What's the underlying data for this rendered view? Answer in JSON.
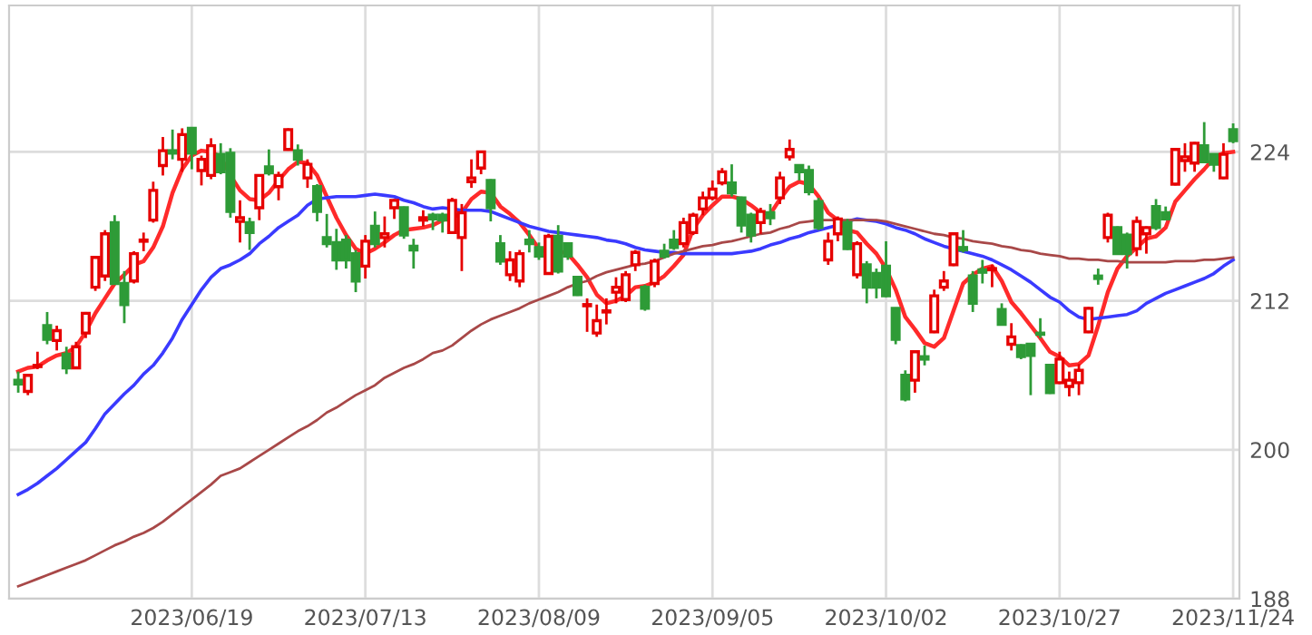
{
  "chart_data": {
    "type": "candlestick",
    "categories": [
      null,
      null,
      null,
      null,
      null,
      null,
      null,
      null,
      null,
      null,
      null,
      null,
      null,
      null,
      null,
      null,
      null,
      null,
      "2023/06/19",
      null,
      null,
      null,
      null,
      null,
      null,
      null,
      null,
      null,
      null,
      null,
      null,
      null,
      null,
      null,
      null,
      null,
      "2023/07/13",
      null,
      null,
      null,
      null,
      null,
      null,
      null,
      null,
      null,
      null,
      null,
      null,
      null,
      null,
      null,
      null,
      null,
      "2023/08/09",
      null,
      null,
      null,
      null,
      null,
      null,
      null,
      null,
      null,
      null,
      null,
      null,
      null,
      null,
      null,
      null,
      null,
      "2023/09/05",
      null,
      null,
      null,
      null,
      null,
      null,
      null,
      null,
      null,
      null,
      null,
      null,
      null,
      null,
      null,
      null,
      null,
      "2023/10/02",
      null,
      null,
      null,
      null,
      null,
      null,
      null,
      null,
      null,
      null,
      null,
      null,
      null,
      null,
      null,
      null,
      null,
      "2023/10/27",
      null,
      null,
      null,
      null,
      null,
      null,
      null,
      null,
      null,
      null,
      null,
      null,
      null,
      null,
      null,
      null,
      null,
      "2023/11/24"
    ],
    "ohlc": [
      [
        205.6,
        206.3,
        204.6,
        205.3
      ],
      [
        204.7,
        206.1,
        204.4,
        206.0
      ],
      [
        206.7,
        207.9,
        206.5,
        206.8
      ],
      [
        210.0,
        211.1,
        208.5,
        208.9
      ],
      [
        208.8,
        210.0,
        208.0,
        209.6
      ],
      [
        207.7,
        208.3,
        206.1,
        206.6
      ],
      [
        206.6,
        208.7,
        206.5,
        208.3
      ],
      [
        209.4,
        211.1,
        209.0,
        211.0
      ],
      [
        213.1,
        215.6,
        212.8,
        215.5
      ],
      [
        214.0,
        217.7,
        213.6,
        217.4
      ],
      [
        218.3,
        218.9,
        213.3,
        213.4
      ],
      [
        213.4,
        214.4,
        210.2,
        211.7
      ],
      [
        213.6,
        216.0,
        213.4,
        215.8
      ],
      [
        216.8,
        217.5,
        216.0,
        216.9
      ],
      [
        218.5,
        221.6,
        218.3,
        220.9
      ],
      [
        222.9,
        225.2,
        222.1,
        224.1
      ],
      [
        224.1,
        225.8,
        223.4,
        223.9
      ],
      [
        223.4,
        225.9,
        222.4,
        225.4
      ],
      [
        225.9,
        225.9,
        222.6,
        223.9
      ],
      [
        222.5,
        223.7,
        221.3,
        223.4
      ],
      [
        222.1,
        225.1,
        221.8,
        224.5
      ],
      [
        223.8,
        224.7,
        222.2,
        222.4
      ],
      [
        223.9,
        224.3,
        218.7,
        219.2
      ],
      [
        218.4,
        220.1,
        216.7,
        218.7
      ],
      [
        218.3,
        218.7,
        216.1,
        217.5
      ],
      [
        219.5,
        222.2,
        218.5,
        222.1
      ],
      [
        222.8,
        224.2,
        222.1,
        222.3
      ],
      [
        221.2,
        222.4,
        220.1,
        222.1
      ],
      [
        224.2,
        225.9,
        224.1,
        225.8
      ],
      [
        224.1,
        224.6,
        222.9,
        223.4
      ],
      [
        221.9,
        223.4,
        221.1,
        223.0
      ],
      [
        221.2,
        221.4,
        218.4,
        219.2
      ],
      [
        217.1,
        219.0,
        216.3,
        216.6
      ],
      [
        216.7,
        217.8,
        214.5,
        215.3
      ],
      [
        216.9,
        217.3,
        214.6,
        215.3
      ],
      [
        215.8,
        216.1,
        212.7,
        213.6
      ],
      [
        214.8,
        217.3,
        213.8,
        216.8
      ],
      [
        218.0,
        219.2,
        216.3,
        216.6
      ],
      [
        217.1,
        218.8,
        216.3,
        217.4
      ],
      [
        219.5,
        220.2,
        218.6,
        220.1
      ],
      [
        219.5,
        219.6,
        217.0,
        217.3
      ],
      [
        216.4,
        217.0,
        214.6,
        216.1
      ],
      [
        218.5,
        219.3,
        218.0,
        218.7
      ],
      [
        218.9,
        219.1,
        217.7,
        218.6
      ],
      [
        218.9,
        219.1,
        217.5,
        218.5
      ],
      [
        217.5,
        220.3,
        217.4,
        220.1
      ],
      [
        217.1,
        219.8,
        214.4,
        219.1
      ],
      [
        221.6,
        223.4,
        221.1,
        221.9
      ],
      [
        222.7,
        224.1,
        222.2,
        224.0
      ],
      [
        221.7,
        221.8,
        218.4,
        219.5
      ],
      [
        216.6,
        217.3,
        214.9,
        215.2
      ],
      [
        214.1,
        216.0,
        213.6,
        215.3
      ],
      [
        213.6,
        216.1,
        213.1,
        215.8
      ],
      [
        216.9,
        217.7,
        215.9,
        216.6
      ],
      [
        216.3,
        216.7,
        215.3,
        215.6
      ],
      [
        214.2,
        217.4,
        214.1,
        217.2
      ],
      [
        217.2,
        218.1,
        214.2,
        214.4
      ],
      [
        216.6,
        216.7,
        215.3,
        215.6
      ],
      [
        213.9,
        214.0,
        212.4,
        212.5
      ],
      [
        211.6,
        212.2,
        209.5,
        211.7
      ],
      [
        209.4,
        211.7,
        209.1,
        210.4
      ],
      [
        211.1,
        212.2,
        210.1,
        211.2
      ],
      [
        212.7,
        213.9,
        211.8,
        213.1
      ],
      [
        212.1,
        214.4,
        211.9,
        214.1
      ],
      [
        214.9,
        216.1,
        214.4,
        215.9
      ],
      [
        213.1,
        213.3,
        211.2,
        211.4
      ],
      [
        213.4,
        215.4,
        213.1,
        215.2
      ],
      [
        216.0,
        216.6,
        215.4,
        215.6
      ],
      [
        216.9,
        217.7,
        216.1,
        216.3
      ],
      [
        216.6,
        218.7,
        216.3,
        218.3
      ],
      [
        217.5,
        219.1,
        217.3,
        218.9
      ],
      [
        219.4,
        220.8,
        218.9,
        220.3
      ],
      [
        220.3,
        221.7,
        220.1,
        221.0
      ],
      [
        221.5,
        222.7,
        221.3,
        222.4
      ],
      [
        221.5,
        223.0,
        220.4,
        220.7
      ],
      [
        220.3,
        220.4,
        217.5,
        218.1
      ],
      [
        218.9,
        219.1,
        216.7,
        217.3
      ],
      [
        218.3,
        219.5,
        217.4,
        219.2
      ],
      [
        219.1,
        219.8,
        218.1,
        218.7
      ],
      [
        220.3,
        222.4,
        219.8,
        221.9
      ],
      [
        223.6,
        225.0,
        223.3,
        224.2
      ],
      [
        222.9,
        223.0,
        221.7,
        222.4
      ],
      [
        222.5,
        222.9,
        220.5,
        220.8
      ],
      [
        220.0,
        220.3,
        217.7,
        217.9
      ],
      [
        215.3,
        217.5,
        214.9,
        216.8
      ],
      [
        217.4,
        218.8,
        216.8,
        218.6
      ],
      [
        218.3,
        218.6,
        216.1,
        216.2
      ],
      [
        214.1,
        216.8,
        213.8,
        216.6
      ],
      [
        214.9,
        215.2,
        211.8,
        213.1
      ],
      [
        214.2,
        214.6,
        212.2,
        213.1
      ],
      [
        214.8,
        216.8,
        212.3,
        212.4
      ],
      [
        211.4,
        211.4,
        208.5,
        208.9
      ],
      [
        206.0,
        206.4,
        203.9,
        204.1
      ],
      [
        205.6,
        208.0,
        204.6,
        207.9
      ],
      [
        207.5,
        208.4,
        206.8,
        207.3
      ],
      [
        209.5,
        212.9,
        209.4,
        212.4
      ],
      [
        213.1,
        214.4,
        212.8,
        213.6
      ],
      [
        214.9,
        217.5,
        214.8,
        217.4
      ],
      [
        216.3,
        217.7,
        215.9,
        216.1
      ],
      [
        214.0,
        214.4,
        211.1,
        211.8
      ],
      [
        214.5,
        215.3,
        213.4,
        214.3
      ],
      [
        214.5,
        214.9,
        213.1,
        214.6
      ],
      [
        211.3,
        211.8,
        210.1,
        210.1
      ],
      [
        208.5,
        210.2,
        208.0,
        209.1
      ],
      [
        208.4,
        208.5,
        207.3,
        207.5
      ],
      [
        208.5,
        208.5,
        204.4,
        207.6
      ],
      [
        209.4,
        210.6,
        209.0,
        209.3
      ],
      [
        206.8,
        206.9,
        204.5,
        204.6
      ],
      [
        205.4,
        207.9,
        205.3,
        207.3
      ],
      [
        205.1,
        206.3,
        204.3,
        205.6
      ],
      [
        205.4,
        206.9,
        204.4,
        206.4
      ],
      [
        209.5,
        211.5,
        209.4,
        211.4
      ],
      [
        214.0,
        214.6,
        213.3,
        213.8
      ],
      [
        217.1,
        219.1,
        216.7,
        218.9
      ],
      [
        217.9,
        218.0,
        215.7,
        215.8
      ],
      [
        217.3,
        217.5,
        214.6,
        215.8
      ],
      [
        216.2,
        218.8,
        215.6,
        218.4
      ],
      [
        217.4,
        218.0,
        215.8,
        217.9
      ],
      [
        219.6,
        220.2,
        217.7,
        217.9
      ],
      [
        219.1,
        219.6,
        218.5,
        218.6
      ],
      [
        221.4,
        224.3,
        221.3,
        224.2
      ],
      [
        223.3,
        224.7,
        222.4,
        223.6
      ],
      [
        223.1,
        224.8,
        222.4,
        224.7
      ],
      [
        224.5,
        226.4,
        223.1,
        223.2
      ],
      [
        223.8,
        223.8,
        222.4,
        223.0
      ],
      [
        221.9,
        224.7,
        221.8,
        223.8
      ],
      [
        225.8,
        226.3,
        224.7,
        224.9
      ]
    ],
    "colors": [
      "#2e9b37",
      "#e60000",
      "#e60000",
      "#2e9b37",
      "#e60000",
      "#2e9b37",
      "#e60000",
      "#e60000",
      "#e60000",
      "#e60000",
      "#2e9b37",
      "#2e9b37",
      "#e60000",
      "#e60000",
      "#e60000",
      "#e60000",
      "#2e9b37",
      "#e60000",
      "#2e9b37",
      "#e60000",
      "#e60000",
      "#2e9b37",
      "#2e9b37",
      "#e60000",
      "#2e9b37",
      "#e60000",
      "#2e9b37",
      "#e60000",
      "#e60000",
      "#2e9b37",
      "#e60000",
      "#2e9b37",
      "#2e9b37",
      "#2e9b37",
      "#2e9b37",
      "#2e9b37",
      "#e60000",
      "#2e9b37",
      "#e60000",
      "#e60000",
      "#2e9b37",
      "#2e9b37",
      "#e60000",
      "#2e9b37",
      "#2e9b37",
      "#e60000",
      "#e60000",
      "#e60000",
      "#e60000",
      "#2e9b37",
      "#2e9b37",
      "#e60000",
      "#e60000",
      "#2e9b37",
      "#2e9b37",
      "#e60000",
      "#2e9b37",
      "#2e9b37",
      "#2e9b37",
      "#e60000",
      "#e60000",
      "#e60000",
      "#e60000",
      "#e60000",
      "#e60000",
      "#2e9b37",
      "#e60000",
      "#2e9b37",
      "#2e9b37",
      "#e60000",
      "#e60000",
      "#e60000",
      "#e60000",
      "#e60000",
      "#2e9b37",
      "#2e9b37",
      "#2e9b37",
      "#e60000",
      "#2e9b37",
      "#e60000",
      "#e60000",
      "#2e9b37",
      "#2e9b37",
      "#2e9b37",
      "#e60000",
      "#e60000",
      "#2e9b37",
      "#e60000",
      "#2e9b37",
      "#2e9b37",
      "#2e9b37",
      "#2e9b37",
      "#2e9b37",
      "#e60000",
      "#2e9b37",
      "#e60000",
      "#e60000",
      "#e60000",
      "#2e9b37",
      "#2e9b37",
      "#2e9b37",
      "#e60000",
      "#2e9b37",
      "#e60000",
      "#2e9b37",
      "#2e9b37",
      "#2e9b37",
      "#2e9b37",
      "#e60000",
      "#e60000",
      "#e60000",
      "#e60000",
      "#2e9b37",
      "#e60000",
      "#2e9b37",
      "#2e9b37",
      "#e60000",
      "#e60000",
      "#2e9b37",
      "#2e9b37",
      "#e60000",
      "#e60000",
      "#e60000",
      "#2e9b37",
      "#2e9b37",
      "#e60000",
      "#2e9b37"
    ],
    "series": [
      {
        "type": "line",
        "color": "#ff2a2a",
        "values": [
          206.3,
          206.6,
          206.7,
          207.2,
          207.6,
          207.8,
          208.3,
          209.5,
          211.0,
          212.2,
          213.4,
          214.1,
          214.9,
          215.2,
          216.3,
          218.0,
          220.7,
          222.6,
          223.7,
          224.1,
          224.0,
          223.6,
          222.1,
          220.9,
          220.2,
          220.1,
          220.7,
          221.7,
          222.6,
          223.2,
          223.1,
          222.1,
          220.4,
          218.7,
          217.3,
          216.2,
          215.8,
          216.2,
          216.7,
          217.3,
          217.7,
          217.8,
          217.9,
          218.1,
          218.5,
          218.7,
          219.1,
          220.2,
          220.8,
          220.7,
          219.6,
          219.0,
          218.3,
          217.3,
          216.2,
          215.9,
          216.0,
          215.8,
          214.9,
          213.9,
          212.5,
          211.8,
          212.0,
          212.4,
          213.1,
          213.2,
          213.5,
          214.0,
          214.8,
          215.7,
          217.8,
          218.9,
          219.7,
          220.4,
          220.4,
          220.2,
          219.7,
          219.1,
          219.0,
          220.2,
          221.2,
          221.6,
          221.4,
          220.4,
          219.1,
          218.5,
          217.7,
          217.5,
          216.6,
          215.8,
          214.6,
          212.9,
          210.7,
          209.7,
          208.6,
          208.3,
          209.0,
          211.2,
          213.4,
          214.1,
          214.6,
          214.8,
          213.6,
          211.9,
          211.0,
          210.0,
          209.0,
          207.9,
          207.5,
          206.8,
          206.9,
          207.6,
          210.0,
          212.7,
          214.6,
          215.6,
          216.3,
          217.0,
          217.2,
          217.9,
          220.0,
          220.9,
          221.8,
          222.6,
          223.5,
          223.9,
          224.0
        ]
      },
      {
        "type": "line",
        "color": "#3a3aff",
        "values": [
          196.4,
          196.8,
          197.3,
          197.9,
          198.5,
          199.2,
          199.9,
          200.6,
          201.7,
          202.9,
          203.7,
          204.5,
          205.2,
          206.1,
          206.8,
          207.8,
          209.0,
          210.5,
          211.7,
          212.9,
          213.9,
          214.6,
          214.9,
          215.3,
          215.8,
          216.6,
          217.2,
          217.9,
          218.4,
          218.9,
          219.7,
          220.2,
          220.3,
          220.4,
          220.4,
          220.4,
          220.5,
          220.6,
          220.5,
          220.4,
          220.1,
          219.9,
          219.6,
          219.4,
          219.5,
          219.4,
          219.3,
          219.3,
          219.3,
          219.2,
          218.9,
          218.6,
          218.3,
          218.0,
          217.8,
          217.6,
          217.5,
          217.4,
          217.3,
          217.2,
          217.1,
          216.9,
          216.8,
          216.6,
          216.3,
          216.1,
          216.0,
          215.9,
          215.9,
          215.8,
          215.8,
          215.8,
          215.8,
          215.8,
          215.8,
          215.9,
          216.0,
          216.2,
          216.5,
          216.7,
          217.0,
          217.2,
          217.5,
          217.7,
          217.9,
          218.1,
          218.4,
          218.6,
          218.5,
          218.4,
          218.2,
          217.9,
          217.7,
          217.4,
          217.0,
          216.7,
          216.4,
          216.2,
          216.0,
          215.8,
          215.6,
          215.3,
          214.9,
          214.5,
          214.0,
          213.5,
          212.9,
          212.3,
          211.9,
          211.2,
          210.7,
          210.5,
          210.6,
          210.7,
          210.8,
          210.9,
          211.2,
          211.8,
          212.2,
          212.6,
          212.9,
          213.2,
          213.5,
          213.8,
          214.2,
          214.8,
          215.3
        ]
      },
      {
        "type": "line",
        "color": "#a84848",
        "values": [
          189.0,
          189.3,
          189.6,
          189.9,
          190.2,
          190.5,
          190.8,
          191.1,
          191.5,
          191.9,
          192.3,
          192.6,
          193.0,
          193.3,
          193.7,
          194.2,
          194.8,
          195.4,
          196.0,
          196.6,
          197.2,
          197.9,
          198.2,
          198.5,
          199.0,
          199.5,
          200.0,
          200.5,
          201.0,
          201.5,
          201.9,
          202.4,
          203.0,
          203.4,
          203.9,
          204.4,
          204.8,
          205.2,
          205.8,
          206.2,
          206.6,
          206.9,
          207.3,
          207.8,
          208.0,
          208.4,
          209.0,
          209.6,
          210.1,
          210.5,
          210.8,
          211.1,
          211.4,
          211.8,
          212.1,
          212.4,
          212.7,
          213.1,
          213.4,
          213.6,
          214.0,
          214.3,
          214.5,
          214.7,
          214.9,
          215.0,
          215.2,
          215.5,
          215.8,
          216.0,
          216.2,
          216.4,
          216.5,
          216.7,
          216.8,
          217.0,
          217.2,
          217.4,
          217.5,
          217.8,
          218.0,
          218.3,
          218.4,
          218.5,
          218.5,
          218.5,
          218.5,
          218.5,
          218.5,
          218.5,
          218.4,
          218.2,
          218.0,
          217.8,
          217.6,
          217.4,
          217.3,
          217.1,
          217.0,
          216.8,
          216.7,
          216.6,
          216.4,
          216.3,
          216.1,
          216.0,
          215.8,
          215.7,
          215.6,
          215.4,
          215.4,
          215.3,
          215.3,
          215.2,
          215.2,
          215.1,
          215.1,
          215.1,
          215.1,
          215.1,
          215.2,
          215.2,
          215.2,
          215.3,
          215.3,
          215.4,
          215.5
        ]
      }
    ],
    "ylim": [
      188,
      235.8
    ],
    "yticks": [
      188,
      200,
      212,
      224
    ],
    "grid": true
  }
}
